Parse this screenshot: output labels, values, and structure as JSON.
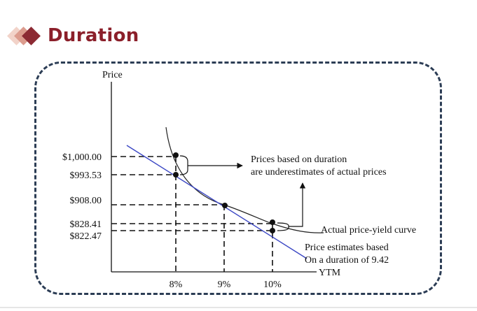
{
  "slide": {
    "title": "Duration"
  },
  "diagram": {
    "y_axis_label": "Price",
    "x_axis_label": "YTM",
    "price_labels": [
      "$1,000.00",
      "$993.53",
      "$908.00",
      "$828.41",
      "$822.47"
    ],
    "yield_labels": [
      "8%",
      "9%",
      "10%"
    ],
    "annotation_duration_line1": "Prices based on duration",
    "annotation_duration_line2": "are underestimates of actual prices",
    "curve_label": "Actual price-yield curve",
    "estimate_label_line1": "Price estimates based",
    "estimate_label_line2": "On a duration of 9.42"
  },
  "colors": {
    "title": "#8b1f2a",
    "frame": "#2c3d55",
    "duration_line": "#3b47c4",
    "curve": "#222222"
  }
}
